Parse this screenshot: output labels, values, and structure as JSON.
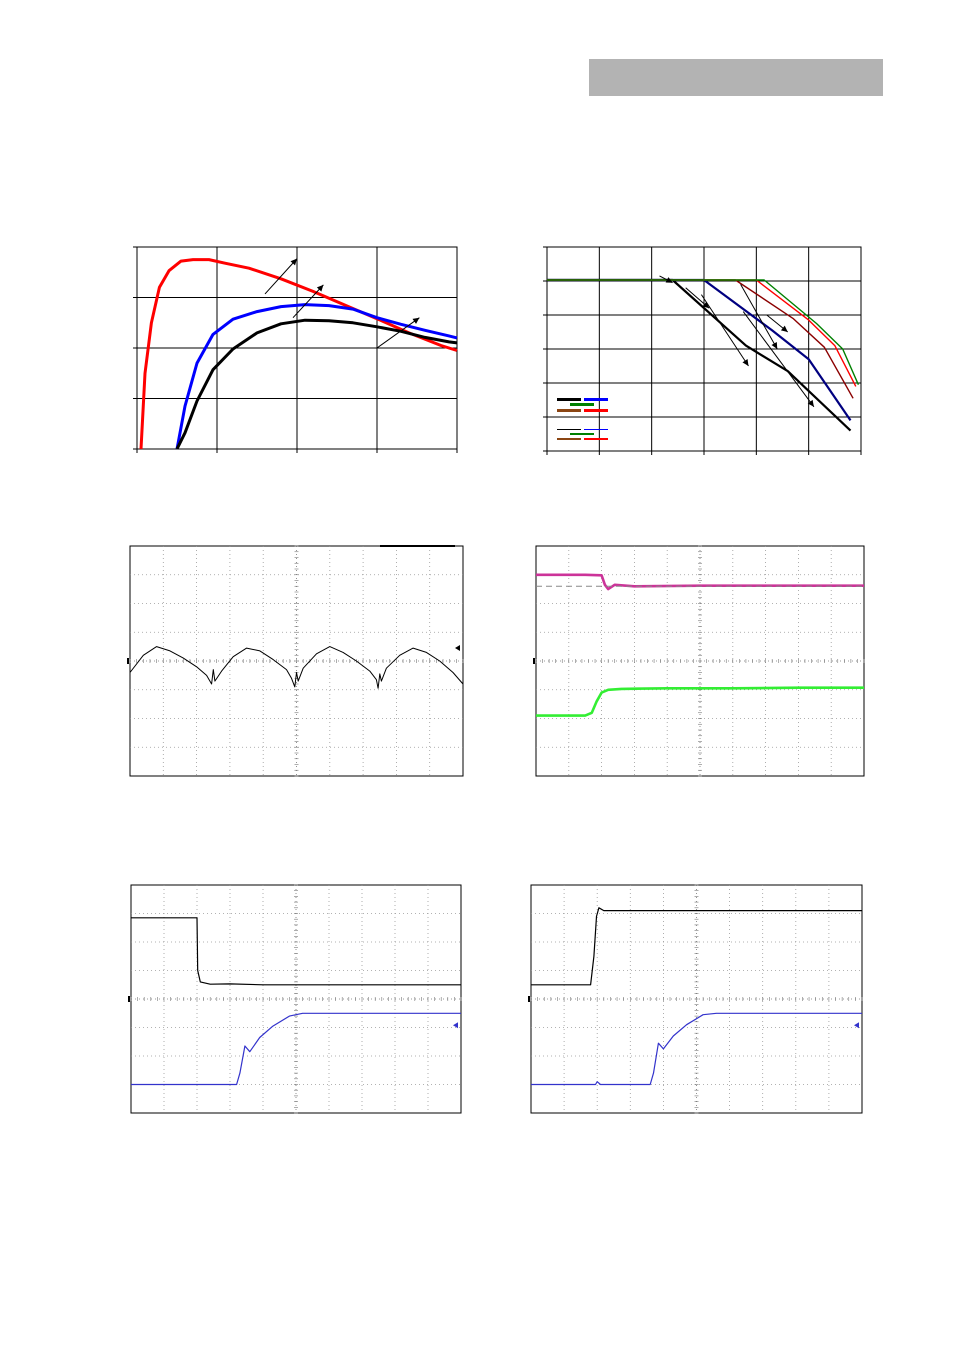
{
  "header": {
    "bar_color": "#b3b3b3"
  },
  "chart_data": [
    {
      "id": "efficiency-curves",
      "type": "line",
      "grid": true,
      "xlim": [
        0,
        4
      ],
      "ylim": [
        0,
        4
      ],
      "series": [
        {
          "color": "#ff0000",
          "x": [
            0.05,
            0.1,
            0.18,
            0.28,
            0.4,
            0.55,
            0.7,
            0.9,
            1.1,
            1.4,
            1.8,
            2.2,
            2.6,
            3.0,
            3.4,
            3.8,
            4.0
          ],
          "y": [
            0.0,
            1.5,
            2.5,
            3.2,
            3.53,
            3.72,
            3.75,
            3.75,
            3.68,
            3.58,
            3.37,
            3.12,
            2.85,
            2.58,
            2.3,
            2.05,
            1.95
          ]
        },
        {
          "color": "#0000ff",
          "x": [
            0.5,
            0.6,
            0.75,
            0.95,
            1.2,
            1.5,
            1.8,
            2.1,
            2.4,
            2.7,
            3.0,
            3.3,
            3.6,
            3.9,
            4.0
          ],
          "y": [
            0.0,
            0.85,
            1.7,
            2.27,
            2.57,
            2.72,
            2.82,
            2.86,
            2.84,
            2.77,
            2.6,
            2.47,
            2.35,
            2.24,
            2.2
          ]
        },
        {
          "color": "#000000",
          "x": [
            0.5,
            0.6,
            0.75,
            0.95,
            1.2,
            1.5,
            1.8,
            2.1,
            2.4,
            2.7,
            3.0,
            3.3,
            3.6,
            3.9,
            4.0
          ],
          "y": [
            0.0,
            0.32,
            0.95,
            1.57,
            1.98,
            2.3,
            2.48,
            2.55,
            2.54,
            2.5,
            2.42,
            2.33,
            2.21,
            2.12,
            2.1
          ]
        }
      ],
      "annotations": [
        {
          "x": [
            1.6,
            2.0
          ],
          "y": [
            3.07,
            3.77
          ]
        },
        {
          "x": [
            1.95,
            2.33
          ],
          "y": [
            2.6,
            3.25
          ]
        },
        {
          "x": [
            3.0,
            3.53
          ],
          "y": [
            2.0,
            2.6
          ]
        }
      ]
    },
    {
      "id": "derating-curves",
      "type": "line",
      "grid": true,
      "xlim": [
        0,
        6
      ],
      "ylim": [
        0,
        6
      ],
      "series": [
        {
          "color": "#000000",
          "x": [
            0,
            2.4,
            3.8,
            4.6,
            5.8
          ],
          "y": [
            5.03,
            5.03,
            3.1,
            2.35,
            0.6
          ]
        },
        {
          "color": "#000080",
          "x": [
            0,
            3.0,
            4.3,
            5.0,
            5.8
          ],
          "y": [
            5.03,
            5.03,
            3.55,
            2.7,
            0.9
          ]
        },
        {
          "color": "#8b0000",
          "x": [
            0,
            3.6,
            4.7,
            5.3,
            5.85
          ],
          "y": [
            5.03,
            5.03,
            3.9,
            3.05,
            1.55
          ]
        },
        {
          "color": "#ff0000",
          "x": [
            0,
            4.0,
            5.0,
            5.5,
            5.9
          ],
          "y": [
            5.03,
            5.03,
            3.85,
            3.1,
            1.9
          ]
        },
        {
          "color": "#008000",
          "x": [
            0,
            4.15,
            5.15,
            5.65,
            5.95
          ],
          "y": [
            5.03,
            5.03,
            3.75,
            3.0,
            1.95
          ]
        }
      ],
      "legend_position": "bottom-left",
      "annotations": [
        {
          "x": [
            2.15,
            2.4
          ],
          "y": [
            5.15,
            4.95
          ]
        },
        {
          "x": [
            2.65,
            3.1
          ],
          "y": [
            4.8,
            4.2
          ]
        },
        {
          "x": [
            2.95,
            3.85
          ],
          "y": [
            4.6,
            2.5
          ]
        },
        {
          "x": [
            3.7,
            4.4
          ],
          "y": [
            4.9,
            3.0
          ]
        },
        {
          "x": [
            4.2,
            4.6
          ],
          "y": [
            4.0,
            3.5
          ]
        },
        {
          "x": [
            3.75,
            5.1
          ],
          "y": [
            4.1,
            1.3
          ]
        }
      ]
    },
    {
      "id": "ripple-waveform",
      "type": "line",
      "grid": true,
      "grid_style": "dotted",
      "xlim": [
        0,
        10
      ],
      "ylim": [
        -4,
        4
      ],
      "trace_color": "#000000",
      "x": [
        0,
        0.4,
        0.8,
        1.2,
        1.6,
        2.0,
        2.3,
        2.45,
        2.5,
        2.55,
        2.75,
        3.1,
        3.5,
        3.9,
        4.3,
        4.7,
        4.85,
        4.95,
        5.0,
        5.05,
        5.2,
        5.6,
        6.0,
        6.4,
        6.8,
        7.2,
        7.4,
        7.45,
        7.5,
        7.55,
        7.7,
        8.1,
        8.5,
        8.9,
        9.3,
        9.7,
        10.0
      ],
      "y": [
        -0.4,
        0.2,
        0.5,
        0.35,
        0.1,
        -0.2,
        -0.5,
        -0.8,
        -0.3,
        -0.7,
        -0.35,
        0.15,
        0.45,
        0.35,
        0.05,
        -0.3,
        -0.6,
        -0.9,
        -0.4,
        -0.7,
        -0.25,
        0.25,
        0.5,
        0.3,
        0.0,
        -0.35,
        -0.65,
        -0.95,
        -0.45,
        -0.7,
        -0.25,
        0.2,
        0.45,
        0.3,
        0.0,
        -0.4,
        -0.8
      ]
    },
    {
      "id": "load-transient",
      "type": "line",
      "grid": true,
      "grid_style": "dotted",
      "xlim": [
        0,
        10
      ],
      "ylim": [
        -4,
        4
      ],
      "series": [
        {
          "color": "#cc3399",
          "x": [
            0,
            1.5,
            2.0,
            2.1,
            2.2,
            2.4,
            3.0,
            5.0,
            7.0,
            9.0,
            10.0
          ],
          "y": [
            3.0,
            3.0,
            2.98,
            2.65,
            2.5,
            2.65,
            2.6,
            2.62,
            2.62,
            2.62,
            2.62
          ]
        },
        {
          "color": "#33ee33",
          "x": [
            0,
            1.5,
            1.7,
            1.85,
            2.0,
            2.2,
            2.6,
            4.0,
            6.0,
            8.0,
            10.0
          ],
          "y": [
            -1.9,
            -1.9,
            -1.8,
            -1.4,
            -1.1,
            -1.0,
            -0.97,
            -0.95,
            -0.95,
            -0.93,
            -0.93
          ]
        }
      ],
      "reference_level_y": 2.6
    },
    {
      "id": "turn-off-waveform",
      "type": "line",
      "grid": true,
      "grid_style": "dotted",
      "xlim": [
        0,
        10
      ],
      "ylim": [
        -4,
        4
      ],
      "series": [
        {
          "color": "#000000",
          "x": [
            0,
            2.0,
            2.02,
            2.1,
            2.4,
            3.0,
            4.0,
            6.0,
            8.0,
            10.0
          ],
          "y": [
            2.85,
            2.85,
            1.0,
            0.6,
            0.52,
            0.53,
            0.5,
            0.5,
            0.5,
            0.5
          ]
        },
        {
          "color": "#3333cc",
          "x": [
            0,
            3.2,
            3.3,
            3.45,
            3.6,
            3.9,
            4.3,
            4.8,
            5.2,
            5.5,
            6.0,
            8.0,
            10.0
          ],
          "y": [
            -3.0,
            -3.0,
            -2.6,
            -1.65,
            -1.85,
            -1.35,
            -0.95,
            -0.6,
            -0.5,
            -0.5,
            -0.5,
            -0.5,
            -0.5
          ]
        }
      ]
    },
    {
      "id": "turn-on-waveform",
      "type": "line",
      "grid": true,
      "grid_style": "dotted",
      "xlim": [
        0,
        10
      ],
      "ylim": [
        -4,
        4
      ],
      "series": [
        {
          "color": "#000000",
          "x": [
            0,
            1.8,
            1.9,
            1.98,
            2.05,
            2.2,
            2.6,
            4.0,
            6.0,
            8.0,
            10.0
          ],
          "y": [
            0.5,
            0.5,
            1.5,
            2.9,
            3.2,
            3.1,
            3.1,
            3.1,
            3.1,
            3.1,
            3.1
          ]
        },
        {
          "color": "#3333cc",
          "x": [
            0,
            1.95,
            2.0,
            2.1,
            3.6,
            3.7,
            3.85,
            4.0,
            4.3,
            4.7,
            5.2,
            5.6,
            6.0,
            8.0,
            10.0
          ],
          "y": [
            -3.0,
            -3.0,
            -2.9,
            -3.0,
            -3.0,
            -2.6,
            -1.55,
            -1.75,
            -1.3,
            -0.9,
            -0.55,
            -0.5,
            -0.5,
            -0.5,
            -0.5
          ]
        }
      ]
    }
  ]
}
